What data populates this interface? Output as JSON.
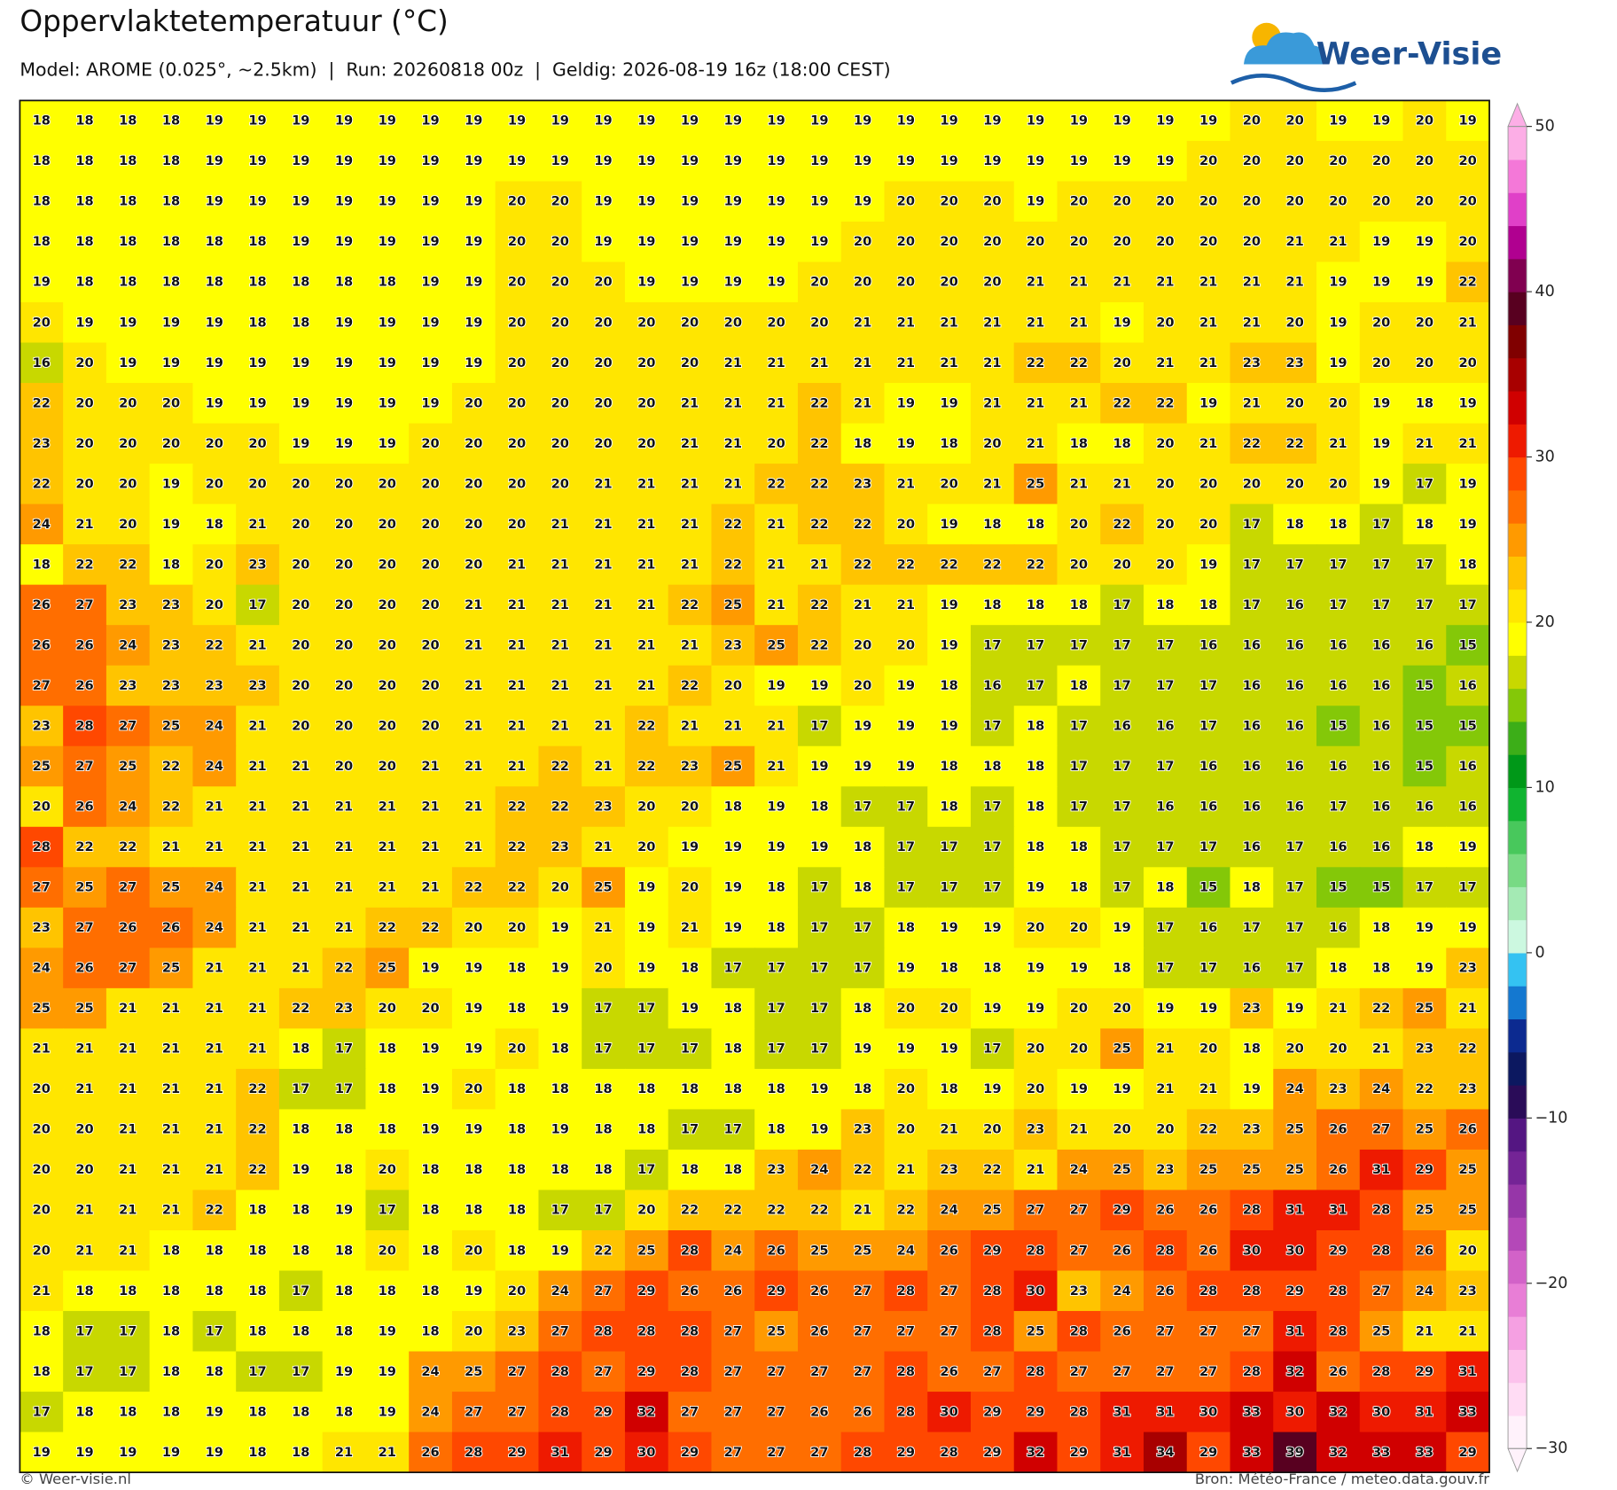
{
  "header": {
    "title": "Oppervlaktetemperatuur (°C)",
    "subtitle": "Model: AROME (0.025°, ~2.5km)  |  Run: 20260818 00z  |  Geldig: 2026-08-19 16z (18:00 CEST)"
  },
  "logo": "Weer-Visie",
  "map": {
    "values": [
      [
        18,
        18,
        18,
        18,
        19,
        19,
        19,
        19,
        19,
        19,
        19,
        19,
        19,
        19,
        19,
        19,
        19,
        19,
        19,
        19,
        19,
        19,
        19,
        19,
        19,
        19,
        19,
        19,
        20,
        20,
        19,
        19,
        20,
        19
      ],
      [
        18,
        18,
        18,
        18,
        19,
        19,
        19,
        19,
        19,
        19,
        19,
        19,
        19,
        19,
        19,
        19,
        19,
        19,
        19,
        19,
        19,
        19,
        19,
        19,
        19,
        19,
        19,
        20,
        20,
        20,
        20,
        20,
        20,
        20
      ],
      [
        18,
        18,
        18,
        18,
        19,
        19,
        19,
        19,
        19,
        19,
        19,
        20,
        20,
        19,
        19,
        19,
        19,
        19,
        19,
        19,
        20,
        20,
        20,
        19,
        20,
        20,
        20,
        20,
        20,
        20,
        20,
        20,
        20,
        20
      ],
      [
        18,
        18,
        18,
        18,
        18,
        18,
        19,
        19,
        19,
        19,
        19,
        20,
        20,
        19,
        19,
        19,
        19,
        19,
        19,
        20,
        20,
        20,
        20,
        20,
        20,
        20,
        20,
        20,
        20,
        21,
        21,
        19,
        19,
        20
      ],
      [
        19,
        18,
        18,
        18,
        18,
        18,
        18,
        18,
        18,
        19,
        19,
        20,
        20,
        20,
        19,
        19,
        19,
        19,
        20,
        20,
        20,
        20,
        20,
        21,
        21,
        21,
        21,
        21,
        21,
        21,
        19,
        19,
        19,
        22
      ],
      [
        20,
        19,
        19,
        19,
        19,
        18,
        18,
        19,
        19,
        19,
        19,
        20,
        20,
        20,
        20,
        20,
        20,
        20,
        20,
        21,
        21,
        21,
        21,
        21,
        21,
        19,
        20,
        21,
        21,
        20,
        19,
        20,
        20,
        21
      ],
      [
        16,
        20,
        19,
        19,
        19,
        19,
        19,
        19,
        19,
        19,
        19,
        20,
        20,
        20,
        20,
        20,
        21,
        21,
        21,
        21,
        21,
        21,
        21,
        22,
        22,
        20,
        21,
        21,
        23,
        23,
        19,
        20,
        20,
        20
      ],
      [
        22,
        20,
        20,
        20,
        19,
        19,
        19,
        19,
        19,
        19,
        20,
        20,
        20,
        20,
        20,
        21,
        21,
        21,
        22,
        21,
        19,
        19,
        21,
        21,
        21,
        22,
        22,
        19,
        21,
        20,
        20,
        19,
        18,
        19
      ],
      [
        23,
        20,
        20,
        20,
        20,
        20,
        19,
        19,
        19,
        20,
        20,
        20,
        20,
        20,
        20,
        21,
        21,
        20,
        22,
        18,
        19,
        18,
        20,
        21,
        18,
        18,
        20,
        21,
        22,
        22,
        21,
        19,
        21,
        21
      ],
      [
        22,
        20,
        20,
        19,
        20,
        20,
        20,
        20,
        20,
        20,
        20,
        20,
        20,
        21,
        21,
        21,
        21,
        22,
        22,
        23,
        21,
        20,
        21,
        25,
        21,
        21,
        20,
        20,
        20,
        20,
        20,
        19,
        17,
        19
      ],
      [
        24,
        21,
        20,
        19,
        18,
        21,
        20,
        20,
        20,
        20,
        20,
        20,
        21,
        21,
        21,
        21,
        22,
        21,
        22,
        22,
        20,
        19,
        18,
        18,
        20,
        22,
        20,
        20,
        17,
        18,
        18,
        17,
        18,
        19
      ],
      [
        18,
        22,
        22,
        18,
        20,
        23,
        20,
        20,
        20,
        20,
        20,
        21,
        21,
        21,
        21,
        21,
        22,
        21,
        21,
        22,
        22,
        22,
        22,
        22,
        20,
        20,
        20,
        19,
        17,
        17,
        17,
        17,
        17,
        18
      ],
      [
        26,
        27,
        23,
        23,
        20,
        17,
        20,
        20,
        20,
        20,
        21,
        21,
        21,
        21,
        21,
        22,
        25,
        21,
        22,
        21,
        21,
        19,
        18,
        18,
        18,
        17,
        18,
        18,
        17,
        16,
        17,
        17,
        17,
        17
      ],
      [
        26,
        26,
        24,
        23,
        22,
        21,
        20,
        20,
        20,
        20,
        21,
        21,
        21,
        21,
        21,
        21,
        23,
        25,
        22,
        20,
        20,
        19,
        17,
        17,
        17,
        17,
        17,
        16,
        16,
        16,
        16,
        16,
        16,
        15
      ],
      [
        27,
        26,
        23,
        23,
        23,
        23,
        20,
        20,
        20,
        20,
        21,
        21,
        21,
        21,
        21,
        22,
        20,
        19,
        19,
        20,
        19,
        18,
        16,
        17,
        18,
        17,
        17,
        17,
        16,
        16,
        16,
        16,
        15,
        16
      ],
      [
        23,
        28,
        27,
        25,
        24,
        21,
        20,
        20,
        20,
        20,
        21,
        21,
        21,
        21,
        22,
        21,
        21,
        21,
        17,
        19,
        19,
        19,
        17,
        18,
        17,
        16,
        16,
        17,
        16,
        16,
        15,
        16,
        15,
        15
      ],
      [
        25,
        27,
        25,
        22,
        24,
        21,
        21,
        20,
        20,
        21,
        21,
        21,
        22,
        21,
        22,
        23,
        25,
        21,
        19,
        19,
        19,
        18,
        18,
        18,
        17,
        17,
        17,
        16,
        16,
        16,
        16,
        16,
        15,
        16
      ],
      [
        20,
        26,
        24,
        22,
        21,
        21,
        21,
        21,
        21,
        21,
        21,
        22,
        22,
        23,
        20,
        20,
        18,
        19,
        18,
        17,
        17,
        18,
        17,
        18,
        17,
        17,
        16,
        16,
        16,
        16,
        17,
        16,
        16,
        16
      ],
      [
        28,
        22,
        22,
        21,
        21,
        21,
        21,
        21,
        21,
        21,
        21,
        22,
        23,
        21,
        20,
        19,
        19,
        19,
        19,
        18,
        17,
        17,
        17,
        18,
        18,
        17,
        17,
        17,
        16,
        17,
        16,
        16,
        18,
        19
      ],
      [
        27,
        25,
        27,
        25,
        24,
        21,
        21,
        21,
        21,
        21,
        22,
        22,
        20,
        25,
        19,
        20,
        19,
        18,
        17,
        18,
        17,
        17,
        17,
        19,
        18,
        17,
        18,
        15,
        18,
        17,
        15,
        15,
        17,
        17
      ],
      [
        23,
        27,
        26,
        26,
        24,
        21,
        21,
        21,
        22,
        22,
        20,
        20,
        19,
        21,
        19,
        21,
        19,
        18,
        17,
        17,
        18,
        19,
        19,
        20,
        20,
        19,
        17,
        16,
        17,
        17,
        16,
        18,
        19,
        19
      ],
      [
        24,
        26,
        27,
        25,
        21,
        21,
        21,
        22,
        25,
        19,
        19,
        18,
        19,
        20,
        19,
        18,
        17,
        17,
        17,
        17,
        19,
        18,
        18,
        19,
        19,
        18,
        17,
        17,
        16,
        17,
        18,
        18,
        19,
        23
      ],
      [
        25,
        25,
        21,
        21,
        21,
        21,
        22,
        23,
        20,
        20,
        19,
        18,
        19,
        17,
        17,
        19,
        18,
        17,
        17,
        18,
        20,
        20,
        19,
        19,
        20,
        20,
        19,
        19,
        23,
        19,
        21,
        22,
        25,
        21
      ],
      [
        21,
        21,
        21,
        21,
        21,
        21,
        18,
        17,
        18,
        19,
        19,
        20,
        18,
        17,
        17,
        17,
        18,
        17,
        17,
        19,
        19,
        19,
        17,
        20,
        20,
        25,
        21,
        20,
        18,
        20,
        20,
        21,
        23,
        22
      ],
      [
        20,
        21,
        21,
        21,
        21,
        22,
        17,
        17,
        18,
        19,
        20,
        18,
        18,
        18,
        18,
        18,
        18,
        18,
        19,
        18,
        20,
        18,
        19,
        20,
        19,
        19,
        21,
        21,
        19,
        24,
        23,
        24,
        22,
        23
      ],
      [
        20,
        20,
        21,
        21,
        21,
        22,
        18,
        18,
        18,
        19,
        19,
        18,
        19,
        18,
        18,
        17,
        17,
        18,
        19,
        23,
        20,
        21,
        20,
        23,
        21,
        20,
        20,
        22,
        23,
        25,
        26,
        27,
        25,
        26
      ],
      [
        20,
        20,
        21,
        21,
        21,
        22,
        19,
        18,
        20,
        18,
        18,
        18,
        18,
        18,
        17,
        18,
        18,
        23,
        24,
        22,
        21,
        23,
        22,
        21,
        24,
        25,
        23,
        25,
        25,
        25,
        26,
        31,
        29,
        25
      ],
      [
        20,
        21,
        21,
        21,
        22,
        18,
        18,
        19,
        17,
        18,
        18,
        18,
        17,
        17,
        20,
        22,
        22,
        22,
        22,
        21,
        22,
        24,
        25,
        27,
        27,
        29,
        26,
        26,
        28,
        31,
        31,
        28,
        25,
        25
      ],
      [
        20,
        21,
        21,
        18,
        18,
        18,
        18,
        18,
        20,
        18,
        20,
        18,
        19,
        22,
        25,
        28,
        24,
        26,
        25,
        25,
        24,
        26,
        29,
        28,
        27,
        26,
        28,
        26,
        30,
        30,
        29,
        28,
        26,
        20
      ],
      [
        21,
        18,
        18,
        18,
        18,
        18,
        17,
        18,
        18,
        18,
        19,
        20,
        24,
        27,
        29,
        26,
        26,
        29,
        26,
        27,
        28,
        27,
        28,
        30,
        23,
        24,
        26,
        28,
        28,
        29,
        28,
        27,
        24,
        23
      ],
      [
        18,
        17,
        17,
        18,
        17,
        18,
        18,
        18,
        19,
        18,
        20,
        23,
        27,
        28,
        28,
        28,
        27,
        25,
        26,
        27,
        27,
        27,
        28,
        25,
        28,
        26,
        27,
        27,
        27,
        31,
        28,
        25,
        21,
        21
      ],
      [
        18,
        17,
        17,
        18,
        18,
        17,
        17,
        19,
        19,
        24,
        25,
        27,
        28,
        27,
        29,
        28,
        27,
        27,
        27,
        27,
        28,
        26,
        27,
        28,
        27,
        27,
        27,
        27,
        28,
        32,
        26,
        28,
        29,
        31
      ],
      [
        17,
        18,
        18,
        18,
        19,
        18,
        18,
        18,
        19,
        24,
        27,
        27,
        28,
        29,
        32,
        27,
        27,
        27,
        26,
        26,
        28,
        30,
        29,
        29,
        28,
        31,
        31,
        30,
        33,
        30,
        32,
        30,
        31,
        33
      ],
      [
        19,
        19,
        19,
        19,
        19,
        18,
        18,
        21,
        21,
        26,
        28,
        29,
        31,
        29,
        30,
        29,
        27,
        27,
        27,
        28,
        29,
        28,
        29,
        32,
        29,
        31,
        34,
        29,
        33,
        39,
        32,
        33,
        33,
        29
      ]
    ]
  },
  "colorbar": {
    "lim": [
      -30,
      50
    ],
    "ticks": [
      {
        "value": -30,
        "label": "−30"
      },
      {
        "value": -20,
        "label": "−20"
      },
      {
        "value": -10,
        "label": "−10"
      },
      0,
      10,
      20,
      30,
      40,
      50
    ],
    "colors": [
      "#fff2fb",
      "#ffdcf4",
      "#fcc2ec",
      "#f5a0e2",
      "#e87ed6",
      "#d262c8",
      "#b448b8",
      "#9636a8",
      "#742496",
      "#541682",
      "#2a0c58",
      "#0c1860",
      "#0c2a90",
      "#1478d0",
      "#34c2f2",
      "#ccf8e0",
      "#a4eab4",
      "#78da84",
      "#48c85c",
      "#10b430",
      "#009818",
      "#3cae18",
      "#84c808",
      "#c8d800",
      "#ffff00",
      "#ffe600",
      "#ffc400",
      "#ff9a00",
      "#ff6e00",
      "#ff4800",
      "#ee1a00",
      "#d00000",
      "#a80000",
      "#800000",
      "#580020",
      "#800050",
      "#b00090",
      "#e040c8",
      "#f478d8",
      "#fcaee6"
    ]
  },
  "footer": {
    "left": "© Weer-visie.nl",
    "right": "Bron: Météo-France / meteo.data.gouv.fr"
  }
}
